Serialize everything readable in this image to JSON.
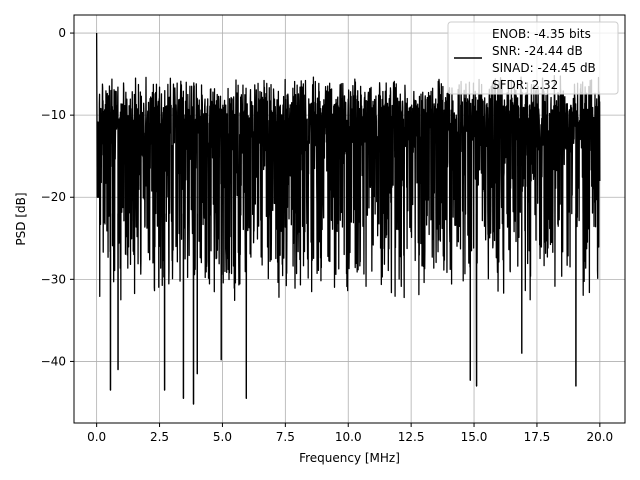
{
  "chart_data": {
    "type": "line",
    "title": "",
    "xlabel": "Frequency [MHz]",
    "ylabel": "PSD [dB]",
    "xlim": [
      -0.9,
      21.0
    ],
    "ylim": [
      -47.5,
      2.2
    ],
    "xticks": [
      0.0,
      2.5,
      5.0,
      7.5,
      10.0,
      12.5,
      15.0,
      17.5,
      20.0
    ],
    "xtick_labels": [
      "0.0",
      "2.5",
      "5.0",
      "7.5",
      "10.0",
      "12.5",
      "15.0",
      "17.5",
      "20.0"
    ],
    "yticks": [
      0,
      -10,
      -20,
      -30,
      -40
    ],
    "ytick_labels": [
      "0",
      "−10",
      "−20",
      "−30",
      "−40"
    ],
    "grid": true,
    "legend_position": "upper-right",
    "series": [
      {
        "name": "",
        "color": "#000000",
        "description_values": "Noise-like PSD spanning 0 to 20 MHz; peak 0 dB at 0 MHz, values mostly between -30 and -5 dB with dips to about -45 dB",
        "x_range": [
          0,
          20
        ],
        "peak": {
          "x": 0.0,
          "y": 0.0
        },
        "typical_upper": -7,
        "typical_lower": -30,
        "deep_dips": [
          {
            "x": 0.55,
            "y": -43.5
          },
          {
            "x": 0.85,
            "y": -41.0
          },
          {
            "x": 2.7,
            "y": -43.5
          },
          {
            "x": 3.45,
            "y": -44.5
          },
          {
            "x": 3.85,
            "y": -45.2
          },
          {
            "x": 4.0,
            "y": -41.5
          },
          {
            "x": 5.95,
            "y": -44.5
          },
          {
            "x": 4.95,
            "y": -39.8
          },
          {
            "x": 14.85,
            "y": -42.3
          },
          {
            "x": 15.1,
            "y": -43.0
          },
          {
            "x": 16.9,
            "y": -39.0
          },
          {
            "x": 19.05,
            "y": -43.0
          }
        ]
      }
    ],
    "legend": {
      "lines": [
        "ENOB: -4.35 bits",
        "SNR: -24.44 dB",
        "SINAD: -24.45 dB",
        "SFDR: 2.32"
      ]
    }
  }
}
